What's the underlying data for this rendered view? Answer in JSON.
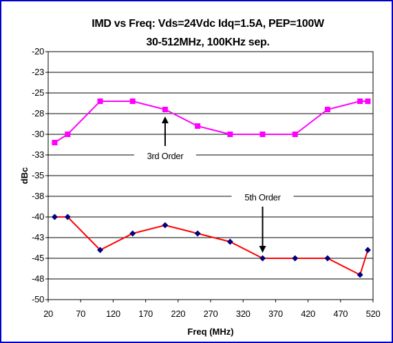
{
  "chart_data": {
    "type": "line",
    "title": "IMD vs Freq:  Vds=24Vdc Idq=1.5A, PEP=100W",
    "subtitle": "30-512MHz, 100KHz sep.",
    "xlabel": "Freq (MHz)",
    "ylabel": "dBc",
    "xlim": [
      20,
      520
    ],
    "ylim": [
      -50,
      -20
    ],
    "x_ticks": [
      20,
      70,
      120,
      170,
      220,
      270,
      320,
      370,
      420,
      470,
      520
    ],
    "y_ticks": [
      -20,
      -22.5,
      -25,
      -27.5,
      -30,
      -32.5,
      -35,
      -37.5,
      -40,
      -42.5,
      -45,
      -47.5,
      -50
    ],
    "y_tick_labels": [
      "-20",
      "-23",
      "-25",
      "-28",
      "-30",
      "-33",
      "-35",
      "-38",
      "-40",
      "-43",
      "-45",
      "-48",
      "-50"
    ],
    "grid": true,
    "series": [
      {
        "name": "3rd Order",
        "color": "#ff00ff",
        "marker": "square",
        "x": [
          30,
          50,
          100,
          150,
          200,
          250,
          300,
          350,
          400,
          450,
          500,
          512
        ],
        "y": [
          -31,
          -30,
          -26,
          -26,
          -27,
          -29,
          -30,
          -30,
          -30,
          -27,
          -26,
          -26
        ]
      },
      {
        "name": "5th Order",
        "color": "#ff0000",
        "marker_color": "#000080",
        "marker": "diamond",
        "x": [
          30,
          50,
          100,
          150,
          200,
          250,
          300,
          350,
          400,
          450,
          500,
          512
        ],
        "y": [
          -40,
          -40,
          -44,
          -42,
          -41,
          -42,
          -43,
          -45,
          -45,
          -45,
          -47,
          -44
        ]
      }
    ],
    "annotations": [
      {
        "text": "3rd Order",
        "series": 0,
        "arrow_to_x": 200
      },
      {
        "text": "5th Order",
        "series": 1,
        "arrow_to_x": 350
      }
    ],
    "colors": {
      "border": "#0000cc",
      "grid": "#000000",
      "background": "#ffffff"
    }
  }
}
